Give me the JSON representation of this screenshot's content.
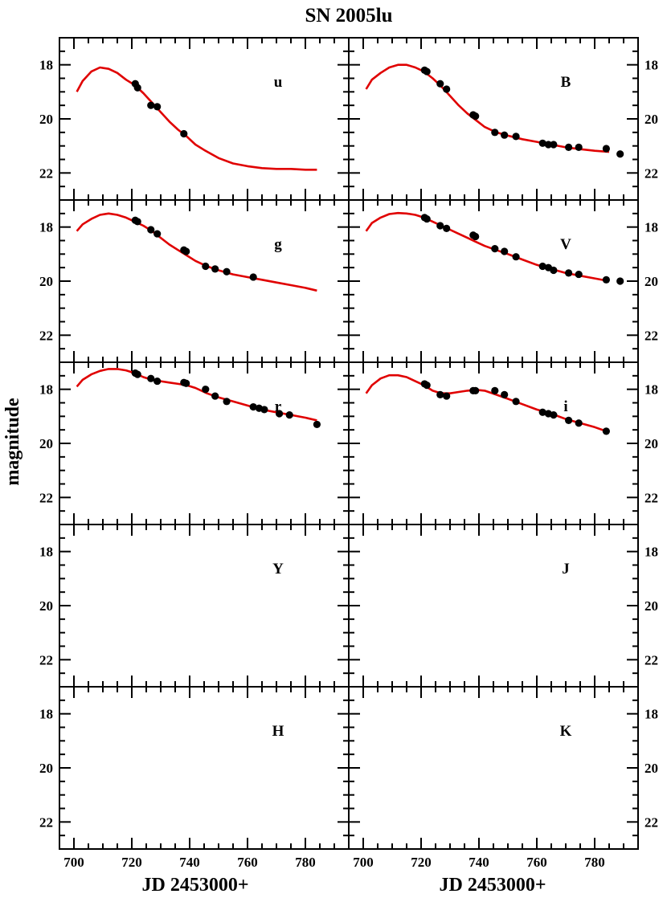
{
  "title": "SN 2005lu",
  "chart_data": {
    "type": "scatter",
    "title": "SN 2005lu",
    "xlabel": "JD 2453000+",
    "ylabel": "magnitude",
    "xlim": [
      695,
      795
    ],
    "ylim": [
      23,
      17
    ],
    "x_ticks": [
      700,
      720,
      740,
      760,
      780
    ],
    "y_ticks": [
      18,
      20,
      22
    ],
    "x_tick_labels": [
      "700",
      "720",
      "740",
      "760",
      "780"
    ],
    "y_tick_labels": [
      "18",
      "20",
      "22"
    ],
    "grid": false,
    "colors": {
      "points": "#000000",
      "fit": "#e00000"
    },
    "layout": "5x2 panels sharing axes",
    "panels": [
      {
        "band": "u",
        "points": [
          [
            721.2,
            18.7
          ],
          [
            722.0,
            18.85
          ],
          [
            726.6,
            19.5
          ],
          [
            728.8,
            19.55
          ],
          [
            738.0,
            20.55
          ]
        ],
        "fit": [
          [
            701,
            19.0
          ],
          [
            703,
            18.6
          ],
          [
            706,
            18.25
          ],
          [
            709,
            18.1
          ],
          [
            712,
            18.15
          ],
          [
            715,
            18.3
          ],
          [
            718,
            18.55
          ],
          [
            721,
            18.75
          ],
          [
            724,
            19.05
          ],
          [
            727,
            19.4
          ],
          [
            730,
            19.75
          ],
          [
            733,
            20.1
          ],
          [
            736,
            20.4
          ],
          [
            739,
            20.65
          ],
          [
            742,
            20.95
          ],
          [
            745,
            21.15
          ],
          [
            750,
            21.45
          ],
          [
            755,
            21.65
          ],
          [
            760,
            21.75
          ],
          [
            765,
            21.82
          ],
          [
            770,
            21.85
          ],
          [
            775,
            21.85
          ],
          [
            780,
            21.88
          ],
          [
            784,
            21.88
          ]
        ]
      },
      {
        "band": "B",
        "points": [
          [
            721.2,
            18.2
          ],
          [
            722.0,
            18.25
          ],
          [
            726.6,
            18.7
          ],
          [
            728.8,
            18.9
          ],
          [
            738.0,
            19.85
          ],
          [
            738.8,
            19.9
          ],
          [
            745.5,
            20.5
          ],
          [
            748.8,
            20.6
          ],
          [
            752.8,
            20.65
          ],
          [
            762.0,
            20.9
          ],
          [
            764.0,
            20.95
          ],
          [
            765.8,
            20.95
          ],
          [
            771.0,
            21.05
          ],
          [
            774.5,
            21.05
          ],
          [
            784.0,
            21.1
          ],
          [
            788.8,
            21.3
          ]
        ],
        "fit": [
          [
            701,
            18.9
          ],
          [
            703,
            18.55
          ],
          [
            706,
            18.3
          ],
          [
            709,
            18.1
          ],
          [
            712,
            18.0
          ],
          [
            715,
            18.0
          ],
          [
            718,
            18.1
          ],
          [
            721,
            18.25
          ],
          [
            724,
            18.5
          ],
          [
            727,
            18.8
          ],
          [
            730,
            19.15
          ],
          [
            733,
            19.5
          ],
          [
            736,
            19.8
          ],
          [
            739,
            20.05
          ],
          [
            742,
            20.3
          ],
          [
            746,
            20.5
          ],
          [
            750,
            20.62
          ],
          [
            755,
            20.75
          ],
          [
            760,
            20.85
          ],
          [
            765,
            20.95
          ],
          [
            770,
            21.05
          ],
          [
            775,
            21.12
          ],
          [
            780,
            21.18
          ],
          [
            785,
            21.22
          ]
        ]
      },
      {
        "band": "g",
        "points": [
          [
            721.2,
            17.75
          ],
          [
            722.0,
            17.8
          ],
          [
            726.6,
            18.1
          ],
          [
            728.8,
            18.25
          ],
          [
            738.0,
            18.85
          ],
          [
            738.8,
            18.9
          ],
          [
            745.5,
            19.45
          ],
          [
            748.8,
            19.55
          ],
          [
            752.8,
            19.65
          ],
          [
            762.0,
            19.85
          ]
        ],
        "fit": [
          [
            701,
            18.15
          ],
          [
            703,
            17.9
          ],
          [
            706,
            17.7
          ],
          [
            709,
            17.55
          ],
          [
            712,
            17.5
          ],
          [
            715,
            17.55
          ],
          [
            718,
            17.65
          ],
          [
            721,
            17.8
          ],
          [
            724,
            17.95
          ],
          [
            727,
            18.15
          ],
          [
            730,
            18.4
          ],
          [
            733,
            18.65
          ],
          [
            736,
            18.85
          ],
          [
            739,
            19.05
          ],
          [
            742,
            19.25
          ],
          [
            746,
            19.45
          ],
          [
            750,
            19.6
          ],
          [
            755,
            19.75
          ],
          [
            760,
            19.85
          ],
          [
            765,
            19.95
          ],
          [
            770,
            20.05
          ],
          [
            775,
            20.15
          ],
          [
            780,
            20.25
          ],
          [
            784,
            20.35
          ]
        ]
      },
      {
        "band": "V",
        "points": [
          [
            721.2,
            17.65
          ],
          [
            722.0,
            17.7
          ],
          [
            726.6,
            17.95
          ],
          [
            728.8,
            18.05
          ],
          [
            738.0,
            18.3
          ],
          [
            738.8,
            18.35
          ],
          [
            745.5,
            18.8
          ],
          [
            748.8,
            18.9
          ],
          [
            752.8,
            19.1
          ],
          [
            762.0,
            19.45
          ],
          [
            764.0,
            19.5
          ],
          [
            765.8,
            19.6
          ],
          [
            771.0,
            19.7
          ],
          [
            774.5,
            19.75
          ],
          [
            784.0,
            19.95
          ],
          [
            788.8,
            20.0
          ]
        ],
        "fit": [
          [
            701,
            18.15
          ],
          [
            703,
            17.85
          ],
          [
            706,
            17.65
          ],
          [
            709,
            17.52
          ],
          [
            712,
            17.48
          ],
          [
            715,
            17.5
          ],
          [
            718,
            17.55
          ],
          [
            721,
            17.65
          ],
          [
            724,
            17.8
          ],
          [
            727,
            17.95
          ],
          [
            730,
            18.1
          ],
          [
            733,
            18.25
          ],
          [
            736,
            18.4
          ],
          [
            739,
            18.55
          ],
          [
            742,
            18.7
          ],
          [
            746,
            18.85
          ],
          [
            750,
            19.0
          ],
          [
            755,
            19.2
          ],
          [
            760,
            19.4
          ],
          [
            765,
            19.55
          ],
          [
            770,
            19.7
          ],
          [
            775,
            19.8
          ],
          [
            780,
            19.9
          ],
          [
            785,
            20.0
          ]
        ]
      },
      {
        "band": "r",
        "points": [
          [
            721.2,
            17.4
          ],
          [
            722.0,
            17.45
          ],
          [
            726.6,
            17.6
          ],
          [
            728.8,
            17.7
          ],
          [
            738.0,
            17.75
          ],
          [
            738.8,
            17.78
          ],
          [
            745.5,
            18.0
          ],
          [
            748.8,
            18.25
          ],
          [
            752.8,
            18.45
          ],
          [
            762.0,
            18.65
          ],
          [
            764.0,
            18.7
          ],
          [
            765.8,
            18.75
          ],
          [
            771.0,
            18.9
          ],
          [
            774.5,
            18.95
          ],
          [
            784.0,
            19.3
          ]
        ],
        "fit": [
          [
            701,
            17.9
          ],
          [
            703,
            17.65
          ],
          [
            706,
            17.45
          ],
          [
            709,
            17.32
          ],
          [
            712,
            17.25
          ],
          [
            715,
            17.25
          ],
          [
            718,
            17.3
          ],
          [
            721,
            17.4
          ],
          [
            724,
            17.55
          ],
          [
            727,
            17.65
          ],
          [
            730,
            17.7
          ],
          [
            733,
            17.75
          ],
          [
            736,
            17.8
          ],
          [
            739,
            17.85
          ],
          [
            742,
            17.95
          ],
          [
            746,
            18.15
          ],
          [
            750,
            18.3
          ],
          [
            755,
            18.45
          ],
          [
            760,
            18.6
          ],
          [
            765,
            18.75
          ],
          [
            770,
            18.85
          ],
          [
            775,
            18.95
          ],
          [
            780,
            19.05
          ],
          [
            784,
            19.15
          ]
        ]
      },
      {
        "band": "i",
        "points": [
          [
            721.2,
            17.8
          ],
          [
            722.0,
            17.85
          ],
          [
            726.6,
            18.2
          ],
          [
            728.8,
            18.25
          ],
          [
            738.0,
            18.05
          ],
          [
            738.8,
            18.05
          ],
          [
            745.5,
            18.05
          ],
          [
            748.8,
            18.2
          ],
          [
            752.8,
            18.45
          ],
          [
            762.0,
            18.85
          ],
          [
            764.0,
            18.9
          ],
          [
            765.8,
            18.95
          ],
          [
            771.0,
            19.15
          ],
          [
            774.5,
            19.25
          ],
          [
            784.0,
            19.55
          ]
        ],
        "fit": [
          [
            701,
            18.15
          ],
          [
            703,
            17.85
          ],
          [
            706,
            17.6
          ],
          [
            709,
            17.48
          ],
          [
            712,
            17.48
          ],
          [
            715,
            17.55
          ],
          [
            718,
            17.7
          ],
          [
            721,
            17.85
          ],
          [
            724,
            18.05
          ],
          [
            727,
            18.15
          ],
          [
            730,
            18.15
          ],
          [
            733,
            18.1
          ],
          [
            736,
            18.05
          ],
          [
            739,
            18.02
          ],
          [
            742,
            18.05
          ],
          [
            746,
            18.2
          ],
          [
            750,
            18.35
          ],
          [
            755,
            18.55
          ],
          [
            760,
            18.75
          ],
          [
            765,
            18.9
          ],
          [
            770,
            19.1
          ],
          [
            775,
            19.25
          ],
          [
            780,
            19.4
          ],
          [
            784,
            19.55
          ]
        ]
      },
      {
        "band": "Y",
        "points": [],
        "fit": []
      },
      {
        "band": "J",
        "points": [],
        "fit": []
      },
      {
        "band": "H",
        "points": [],
        "fit": []
      },
      {
        "band": "K",
        "points": [],
        "fit": []
      }
    ]
  }
}
